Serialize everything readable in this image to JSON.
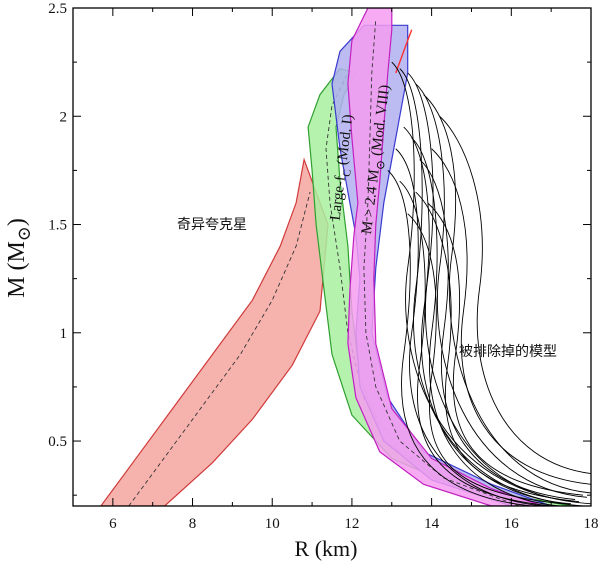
{
  "chart_data": {
    "type": "area",
    "title": "",
    "xlabel": "R (km)",
    "ylabel_main": "M (M",
    "ylabel_sub": "⊙",
    "ylabel_close": ")",
    "xlim": [
      5,
      18
    ],
    "ylim": [
      0.2,
      2.5
    ],
    "xticks": [
      6,
      8,
      10,
      12,
      14,
      16,
      18
    ],
    "yticks": [
      0.5,
      1,
      1.5,
      2,
      2.5
    ],
    "grid": false,
    "annotations": {
      "strange_star": "奇异夸克星",
      "excluded": "被排除掉的模型",
      "largefc_main": "Large-f",
      "largefc_sub": "C",
      "largefc_tail": " (Mod. I)",
      "heavy_main": "M > 2.4 M",
      "heavy_sub": "⊙",
      "heavy_tail": " (Mod. VIII)"
    },
    "bands": [
      {
        "color": "#f4a6a0",
        "edge": "#d03a3a",
        "left": [
          [
            5.7,
            0.2
          ],
          [
            6.5,
            0.4
          ],
          [
            7.5,
            0.65
          ],
          [
            8.5,
            0.9
          ],
          [
            9.5,
            1.15
          ],
          [
            10.2,
            1.4
          ],
          [
            10.6,
            1.6
          ],
          [
            10.8,
            1.8
          ]
        ],
        "right": [
          [
            11.4,
            1.5
          ],
          [
            11.2,
            1.1
          ],
          [
            10.5,
            0.85
          ],
          [
            9.5,
            0.6
          ],
          [
            8.5,
            0.4
          ],
          [
            7.3,
            0.2
          ]
        ],
        "center": [
          [
            6.4,
            0.2
          ],
          [
            7.2,
            0.4
          ],
          [
            8.2,
            0.65
          ],
          [
            9.2,
            0.9
          ],
          [
            10.0,
            1.15
          ],
          [
            10.6,
            1.4
          ],
          [
            10.95,
            1.65
          ]
        ]
      },
      {
        "color": "#a8f0a0",
        "edge": "#2fa02f",
        "left": [
          [
            16.5,
            0.2
          ],
          [
            14.5,
            0.3
          ],
          [
            13.0,
            0.42
          ],
          [
            12.0,
            0.62
          ],
          [
            11.5,
            0.9
          ],
          [
            11.3,
            1.2
          ],
          [
            11.1,
            1.5
          ],
          [
            11.0,
            1.75
          ],
          [
            10.9,
            1.95
          ],
          [
            11.2,
            2.1
          ],
          [
            11.7,
            2.22
          ]
        ],
        "right": [
          [
            12.1,
            2.2
          ],
          [
            11.8,
            2.1
          ],
          [
            11.6,
            1.95
          ],
          [
            11.7,
            1.7
          ],
          [
            11.9,
            1.4
          ],
          [
            12.0,
            1.1
          ],
          [
            12.2,
            0.8
          ],
          [
            12.8,
            0.5
          ],
          [
            14.0,
            0.35
          ],
          [
            16.0,
            0.25
          ],
          [
            17.5,
            0.2
          ]
        ],
        "center": [
          [
            17.0,
            0.2
          ],
          [
            14.8,
            0.3
          ],
          [
            13.2,
            0.45
          ],
          [
            12.3,
            0.7
          ],
          [
            11.9,
            1.0
          ],
          [
            11.7,
            1.3
          ],
          [
            11.45,
            1.6
          ],
          [
            11.35,
            1.85
          ],
          [
            11.5,
            2.05
          ],
          [
            11.9,
            2.2
          ]
        ]
      },
      {
        "color": "#b0b0f0",
        "edge": "#3a3ad0",
        "left": [
          [
            16.0,
            0.2
          ],
          [
            14.0,
            0.32
          ],
          [
            12.8,
            0.5
          ],
          [
            12.2,
            0.75
          ],
          [
            12.1,
            1.0
          ],
          [
            12.2,
            1.25
          ],
          [
            12.1,
            1.45
          ],
          [
            11.9,
            1.65
          ],
          [
            11.7,
            1.85
          ],
          [
            11.6,
            2.0
          ],
          [
            11.5,
            2.15
          ],
          [
            11.7,
            2.3
          ],
          [
            12.3,
            2.42
          ],
          [
            13.4,
            2.42
          ]
        ],
        "right": [
          [
            13.4,
            2.2
          ],
          [
            13.1,
            1.9
          ],
          [
            12.8,
            1.6
          ],
          [
            12.6,
            1.3
          ],
          [
            12.5,
            1.0
          ],
          [
            12.9,
            0.7
          ],
          [
            13.8,
            0.45
          ],
          [
            15.5,
            0.3
          ],
          [
            17.0,
            0.2
          ]
        ],
        "center": []
      },
      {
        "color": "#f59cf0",
        "edge": "#c020c0",
        "left": [
          [
            15.5,
            0.2
          ],
          [
            13.8,
            0.3
          ],
          [
            12.7,
            0.45
          ],
          [
            12.1,
            0.7
          ],
          [
            11.9,
            0.95
          ],
          [
            11.95,
            1.2
          ],
          [
            12.05,
            1.45
          ],
          [
            12.15,
            1.6
          ],
          [
            12.0,
            1.9
          ],
          [
            11.9,
            2.15
          ],
          [
            12.0,
            2.35
          ],
          [
            12.4,
            2.5
          ],
          [
            13.0,
            2.5
          ]
        ],
        "right": [
          [
            13.0,
            2.4
          ],
          [
            12.9,
            2.2
          ],
          [
            12.8,
            1.95
          ],
          [
            12.7,
            1.7
          ],
          [
            12.6,
            1.5
          ],
          [
            12.55,
            1.25
          ],
          [
            12.6,
            0.95
          ],
          [
            13.0,
            0.65
          ],
          [
            14.0,
            0.42
          ],
          [
            15.5,
            0.28
          ],
          [
            16.8,
            0.2
          ]
        ],
        "center": [
          [
            16.2,
            0.2
          ],
          [
            14.3,
            0.33
          ],
          [
            13.2,
            0.5
          ],
          [
            12.6,
            0.75
          ],
          [
            12.35,
            1.0
          ],
          [
            12.3,
            1.3
          ],
          [
            12.4,
            1.6
          ],
          [
            12.45,
            1.9
          ],
          [
            12.5,
            2.2
          ],
          [
            12.6,
            2.45
          ]
        ]
      },
      {
        "color": "none",
        "edge": "#ff3030",
        "left": [
          [
            13.1,
            2.2
          ],
          [
            13.3,
            2.3
          ],
          [
            13.5,
            2.4
          ]
        ],
        "right": [],
        "center": []
      }
    ],
    "excluded_curves": [
      {
        "peak": [
          13.0,
          2.25
        ],
        "mid": [
          13.4,
          1.3
        ],
        "end": [
          18.0,
          0.21
        ]
      },
      {
        "peak": [
          13.2,
          2.22
        ],
        "mid": [
          13.6,
          1.2
        ],
        "end": [
          17.8,
          0.2
        ]
      },
      {
        "peak": [
          13.4,
          2.2
        ],
        "mid": [
          13.9,
          1.25
        ],
        "end": [
          17.6,
          0.22
        ]
      },
      {
        "peak": [
          13.6,
          2.15
        ],
        "mid": [
          14.2,
          1.3
        ],
        "end": [
          17.9,
          0.24
        ]
      },
      {
        "peak": [
          13.8,
          2.1
        ],
        "mid": [
          14.5,
          1.35
        ],
        "end": [
          18.0,
          0.26
        ]
      },
      {
        "peak": [
          13.3,
          1.95
        ],
        "mid": [
          13.8,
          1.1
        ],
        "end": [
          17.5,
          0.21
        ]
      },
      {
        "peak": [
          13.5,
          1.9
        ],
        "mid": [
          14.0,
          1.0
        ],
        "end": [
          17.2,
          0.2
        ]
      },
      {
        "peak": [
          13.1,
          1.85
        ],
        "mid": [
          13.5,
          1.0
        ],
        "end": [
          16.8,
          0.2
        ]
      },
      {
        "peak": [
          13.7,
          1.8
        ],
        "mid": [
          14.3,
          1.0
        ],
        "end": [
          17.6,
          0.23
        ]
      },
      {
        "peak": [
          12.9,
          1.75
        ],
        "mid": [
          13.3,
          0.9
        ],
        "end": [
          16.5,
          0.2
        ]
      },
      {
        "peak": [
          14.0,
          1.85
        ],
        "mid": [
          14.8,
          1.1
        ],
        "end": [
          18.0,
          0.3
        ]
      },
      {
        "peak": [
          13.2,
          1.7
        ],
        "mid": [
          13.7,
          0.85
        ],
        "end": [
          17.0,
          0.2
        ]
      },
      {
        "peak": [
          13.9,
          1.6
        ],
        "mid": [
          14.6,
          0.9
        ],
        "end": [
          17.8,
          0.25
        ]
      },
      {
        "peak": [
          13.4,
          1.55
        ],
        "mid": [
          14.0,
          0.8
        ],
        "end": [
          17.3,
          0.21
        ]
      },
      {
        "peak": [
          14.2,
          2.0
        ],
        "mid": [
          15.2,
          1.2
        ],
        "end": [
          18.0,
          0.35
        ]
      },
      {
        "peak": [
          13.6,
          1.65
        ],
        "mid": [
          14.4,
          0.85
        ],
        "end": [
          17.7,
          0.22
        ]
      }
    ]
  }
}
